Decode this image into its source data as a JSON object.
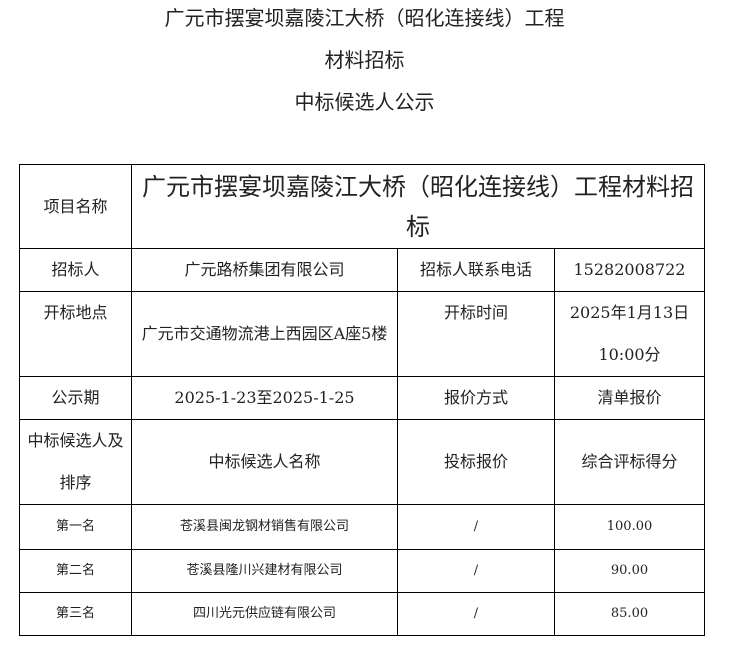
{
  "header": {
    "line1": "广元市摆宴坝嘉陵江大桥（昭化连接线）工程",
    "line2": "材料招标",
    "line3": "中标候选人公示"
  },
  "table": {
    "project_label": "项目名称",
    "project_value": "广元市摆宴坝嘉陵江大桥（昭化连接线）工程材料招标",
    "tenderer_label": "招标人",
    "tenderer_value": "广元路桥集团有限公司",
    "phone_label": "招标人联系电话",
    "phone_value": "15282008722",
    "location_label": "开标地点",
    "location_value": "广元市交通物流港上西园区A座5楼",
    "time_label": "开标时间",
    "time_value": "2025年1月13日10:00分",
    "period_label": "公示期",
    "period_value": "2025-1-23至2025-1-25",
    "quote_method_label": "报价方式",
    "quote_method_value": "清单报价",
    "rank_header": "中标候选人及排序",
    "name_header": "中标候选人名称",
    "bid_header": "投标报价",
    "score_header": "综合评标得分",
    "candidates": [
      {
        "rank": "第一名",
        "name": "苍溪县闽龙钢材销售有限公司",
        "bid": "/",
        "score": "100.00"
      },
      {
        "rank": "第二名",
        "name": "苍溪县隆川兴建材有限公司",
        "bid": "/",
        "score": "90.00"
      },
      {
        "rank": "第三名",
        "name": "四川光元供应链有限公司",
        "bid": "/",
        "score": "85.00"
      }
    ]
  }
}
